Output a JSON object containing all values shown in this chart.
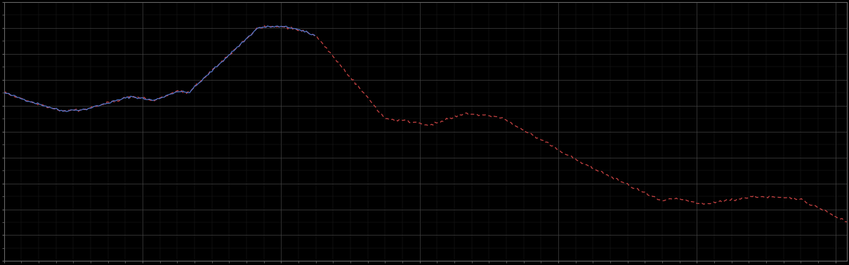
{
  "background_color": "#000000",
  "plot_bg_color": "#000000",
  "grid_major_color": "#444444",
  "grid_minor_color": "#222222",
  "line1_color": "#5577cc",
  "line2_color": "#cc4444",
  "figsize": [
    12.09,
    3.78
  ],
  "dpi": 100,
  "ylim": [
    0,
    10
  ],
  "xlim": [
    0,
    365
  ],
  "num_points": 500,
  "y_major_interval": 1,
  "y_minor_interval": 0.5,
  "x_major_interval": 60,
  "x_minor_interval": 7.5
}
